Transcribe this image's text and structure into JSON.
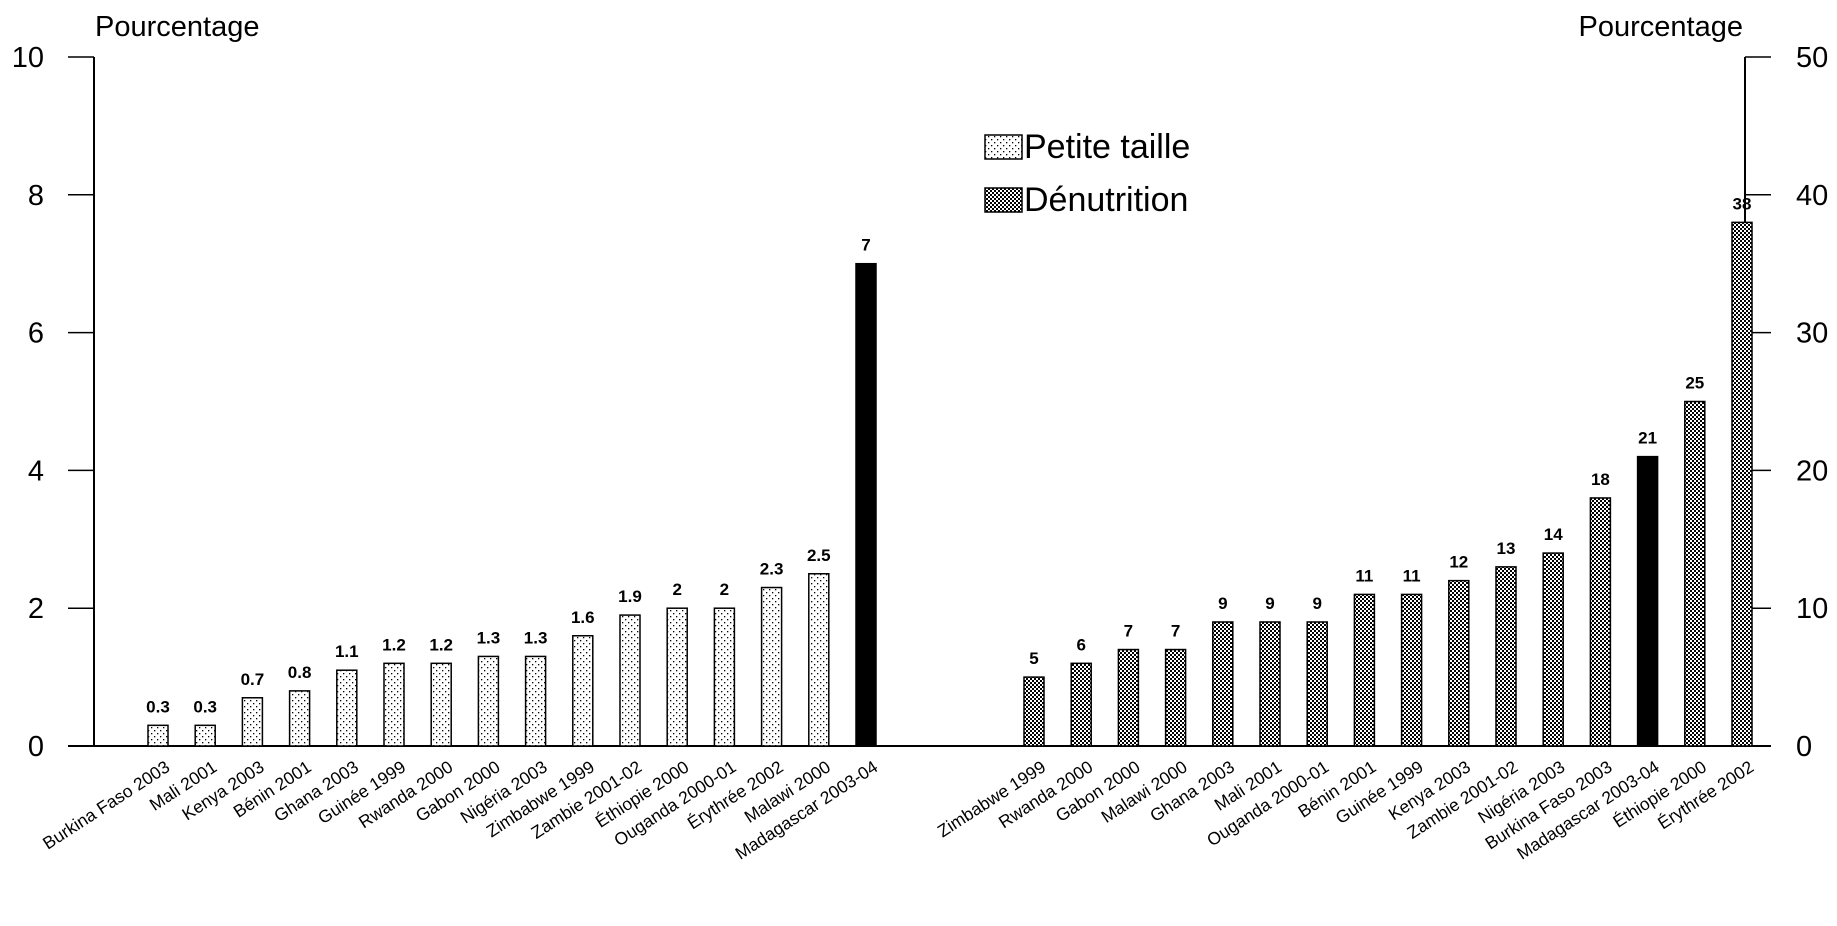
{
  "chart_data": {
    "type": "bar",
    "left_axis": {
      "label": "Pourcentage",
      "ylim": [
        0,
        10
      ],
      "ticks": [
        0,
        2,
        4,
        6,
        8,
        10
      ]
    },
    "right_axis": {
      "label": "Pourcentage",
      "ylim": [
        0,
        50
      ],
      "ticks": [
        0,
        10,
        20,
        30,
        40,
        50
      ]
    },
    "legend": {
      "position": "top-center",
      "entries": [
        {
          "name": "Petite taille",
          "pattern": "dots"
        },
        {
          "name": "Dénutrition",
          "pattern": "checker"
        }
      ]
    },
    "series": [
      {
        "name": "Petite taille",
        "axis": "left",
        "pattern": "dots",
        "highlight_color": "#000000",
        "categories": [
          "Burkina Faso 2003",
          "Mali 2001",
          "Kenya 2003",
          "Bénin 2001",
          "Ghana 2003",
          "Guinée 1999",
          "Rwanda 2000",
          "Gabon 2000",
          "Nigéria 2003",
          "Zimbabwe 1999",
          "Zambie 2001-02",
          "Éthiopie 2000",
          "Ouganda 2000-01",
          "Érythrée 2002",
          "Malawi 2000",
          "Madagascar 2003-04"
        ],
        "values": [
          0.3,
          0.3,
          0.7,
          0.8,
          1.1,
          1.2,
          1.2,
          1.3,
          1.3,
          1.6,
          1.9,
          2,
          2,
          2.3,
          2.5,
          7
        ],
        "labels": [
          "0.3",
          "0.3",
          "0.7",
          "0.8",
          "1.1",
          "1.2",
          "1.2",
          "1.3",
          "1.3",
          "1.6",
          "1.9",
          "2",
          "2",
          "2.3",
          "2.5",
          "7"
        ],
        "highlight": [
          false,
          false,
          false,
          false,
          false,
          false,
          false,
          false,
          false,
          false,
          false,
          false,
          false,
          false,
          false,
          true
        ]
      },
      {
        "name": "Dénutrition",
        "axis": "right",
        "pattern": "checker",
        "highlight_color": "#000000",
        "categories": [
          "Zimbabwe 1999",
          "Rwanda 2000",
          "Gabon 2000",
          "Malawi 2000",
          "Ghana 2003",
          "Mali 2001",
          "Ouganda 2000-01",
          "Bénin 2001",
          "Guinée 1999",
          "Kenya 2003",
          "Zambie 2001-02",
          "Nigéria 2003",
          "Burkina Faso 2003",
          "Madagascar 2003-04",
          "Éthiopie 2000",
          "Érythrée 2002"
        ],
        "values": [
          5,
          6,
          7,
          7,
          9,
          9,
          9,
          11,
          11,
          12,
          13,
          14,
          18,
          21,
          25,
          38
        ],
        "labels": [
          "5",
          "6",
          "7",
          "7",
          "9",
          "9",
          "9",
          "11",
          "11",
          "12",
          "13",
          "14",
          "18",
          "21",
          "25",
          "38"
        ],
        "highlight": [
          false,
          false,
          false,
          false,
          false,
          false,
          false,
          false,
          false,
          false,
          false,
          false,
          false,
          true,
          false,
          false
        ]
      }
    ]
  }
}
